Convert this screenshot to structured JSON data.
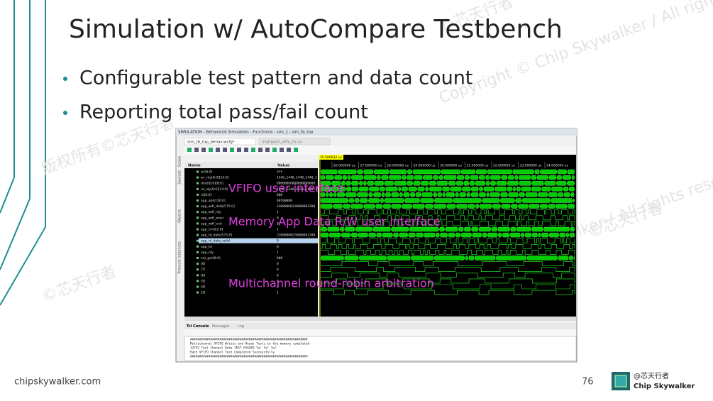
{
  "title": "Simulation w/ AutoCompare Testbench",
  "bullets": [
    "Configurable test pattern and data count",
    "Reporting total pass/fail count"
  ],
  "screenshot": {
    "window_title": "SIMULATION - Behavioral Simulation - Functional - sim_1 - sim_tb_top",
    "tabs": [
      "sim_tb_top_behav.wcfg*",
      "multiport_vfifo_tb.sv"
    ],
    "side_tabs": [
      "Scope",
      "Sources",
      "Objects",
      "Protocol Instances"
    ],
    "columns": [
      "Name",
      "Value"
    ],
    "cursor": "25.500032 us",
    "time_labels": [
      "26.000000 us",
      "27.000000 us",
      "28.000000 us",
      "29.000000 us",
      "30.000000 us",
      "31.000000 us",
      "32.000000 us",
      "33.000000 us",
      "34.000000 us"
    ],
    "signals": [
      {
        "name": "wr[8:0]",
        "value": "3ff"
      },
      {
        "name": "wr_rdy[8:0][14:0]",
        "value": "1440,1440,1440,1440,1"
      },
      {
        "name": "dout[8:0][8:0]",
        "value": "00000000000000000000"
      },
      {
        "name": "rd_rdy[8:0][14:0]",
        "value": "1440,1440,1440,1440,1"
      },
      {
        "name": "rd[8:0]",
        "value": "000"
      },
      {
        "name": "app_addr[30:0]",
        "value": "00f00080"
      },
      {
        "name": "app_wdf_data[575:0]",
        "value": "33000000330000003300"
      },
      {
        "name": "app_wdf_rdy",
        "value": "1"
      },
      {
        "name": "app_wdf_wren",
        "value": "0"
      },
      {
        "name": "app_wdf_end",
        "value": "0"
      },
      {
        "name": "app_cmd[2:0]",
        "value": "1"
      },
      {
        "name": "app_rd_data[575:0]",
        "value": "22000000220000002200"
      },
      {
        "name": "app_rd_data_valid",
        "value": "0"
      },
      {
        "name": "app_en",
        "value": "0"
      },
      {
        "name": "app_rdy",
        "value": "1"
      },
      {
        "name": "ext_gnt[8:0]",
        "value": "008"
      },
      {
        "name": "[8]",
        "value": "0"
      },
      {
        "name": "[7]",
        "value": "0"
      },
      {
        "name": "[6]",
        "value": "0"
      },
      {
        "name": "[5]",
        "value": "0"
      },
      {
        "name": "[4]",
        "value": "0"
      },
      {
        "name": "[3]",
        "value": "1"
      }
    ],
    "console_tabs": [
      "Tcl Console",
      "Messages",
      "Log"
    ],
    "console_lines": [
      "################################################################",
      "Multichannel VFIFO Writes and Reads Tests to the memory completed",
      "        32792 Toal Channel Data TEST PASSED  Ya! Ya! Ya!",
      "Each VFIFO Channel Test Completed Successfully",
      "################################################################"
    ]
  },
  "annotations": [
    "VFIFO user interface",
    "Memory App Data R/W user interface",
    "Multichannel round-robin arbitration"
  ],
  "footer": {
    "site": "chipskywalker.com",
    "page": "76",
    "logo": [
      "@芯天行者",
      "Chip Skywalker"
    ]
  },
  "watermarks": [
    "©芯天行者",
    "Copyright © Chip Skywalker / All rights reserved",
    "版权所有©芯天行者",
    "©芯天行者",
    "Copyright © Chip Skywalker / All rights reserved",
    "©芯天行者"
  ]
}
